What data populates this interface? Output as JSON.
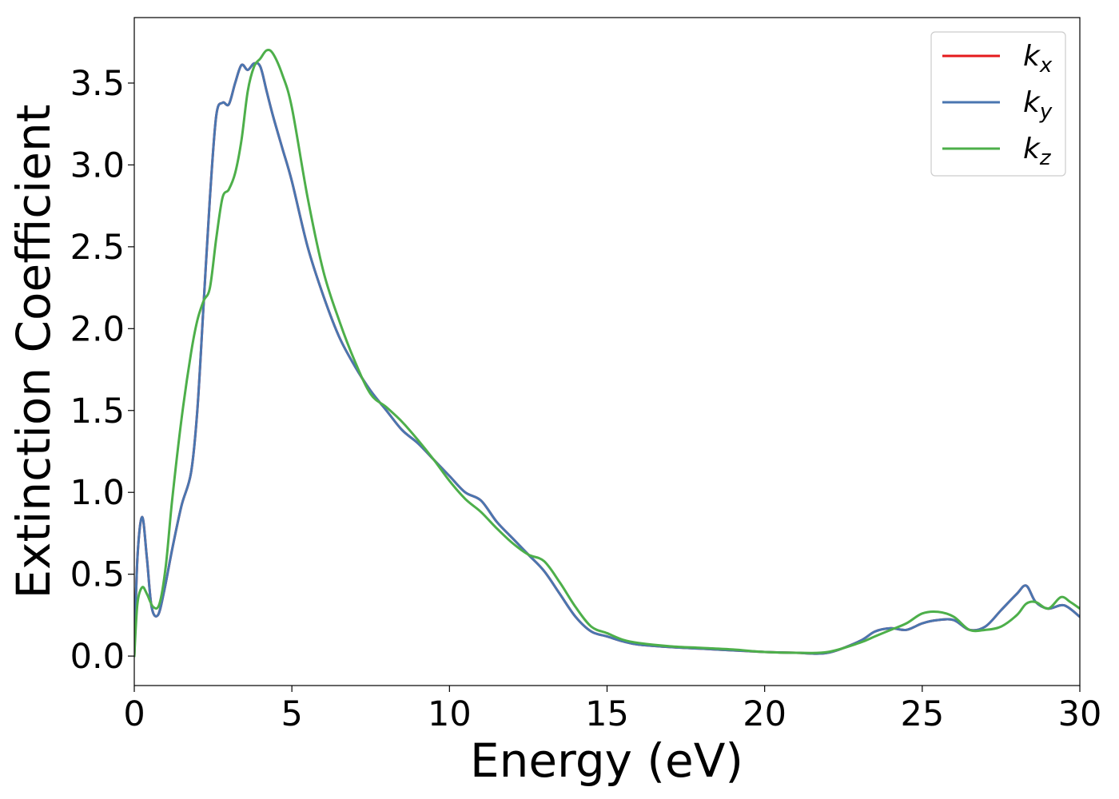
{
  "chart_data": {
    "type": "line",
    "title": "",
    "xlabel": "Energy (eV)",
    "ylabel": "Extinction Coefficient",
    "xlim": [
      0,
      30
    ],
    "ylim": [
      -0.18,
      3.9
    ],
    "xticks": [
      0,
      5,
      10,
      15,
      20,
      25,
      30
    ],
    "xtick_labels": [
      "0",
      "5",
      "10",
      "15",
      "20",
      "25",
      "30"
    ],
    "yticks": [
      0.0,
      0.5,
      1.0,
      1.5,
      2.0,
      2.5,
      3.0,
      3.5
    ],
    "ytick_labels": [
      "0.0",
      "0.5",
      "1.0",
      "1.5",
      "2.0",
      "2.5",
      "3.0",
      "3.5"
    ],
    "grid": false,
    "legend_position": "top-right",
    "series": [
      {
        "name": "k_x",
        "legend_base": "k",
        "legend_sub": "x",
        "color": "#e41a1c",
        "x": [
          0,
          0.1,
          0.25,
          0.4,
          0.55,
          0.75,
          0.95,
          1.2,
          1.5,
          1.8,
          2.0,
          2.2,
          2.4,
          2.6,
          2.8,
          3.0,
          3.2,
          3.4,
          3.6,
          3.8,
          4.0,
          4.2,
          4.4,
          4.7,
          5.0,
          5.5,
          6.0,
          6.5,
          7.0,
          7.5,
          8.0,
          8.5,
          9.0,
          9.5,
          10.0,
          10.5,
          11.0,
          11.5,
          12.0,
          12.5,
          13.0,
          13.5,
          14.0,
          14.5,
          15.0,
          15.5,
          16.0,
          17.0,
          18.0,
          19.0,
          20.0,
          21.0,
          22.0,
          23.0,
          23.5,
          24.0,
          24.5,
          25.0,
          25.5,
          26.0,
          26.5,
          27.0,
          27.5,
          28.0,
          28.3,
          28.6,
          29.0,
          29.5,
          30.0
        ],
        "values": [
          0.0,
          0.6,
          0.85,
          0.6,
          0.3,
          0.25,
          0.4,
          0.65,
          0.92,
          1.12,
          1.5,
          2.15,
          2.8,
          3.3,
          3.38,
          3.37,
          3.5,
          3.61,
          3.58,
          3.62,
          3.6,
          3.45,
          3.3,
          3.1,
          2.9,
          2.5,
          2.2,
          1.95,
          1.77,
          1.62,
          1.5,
          1.38,
          1.3,
          1.2,
          1.1,
          1.0,
          0.95,
          0.82,
          0.72,
          0.62,
          0.52,
          0.38,
          0.24,
          0.15,
          0.12,
          0.09,
          0.07,
          0.055,
          0.045,
          0.035,
          0.025,
          0.02,
          0.02,
          0.09,
          0.15,
          0.17,
          0.16,
          0.2,
          0.22,
          0.22,
          0.16,
          0.18,
          0.28,
          0.38,
          0.43,
          0.33,
          0.29,
          0.31,
          0.24
        ]
      },
      {
        "name": "k_y",
        "legend_base": "k",
        "legend_sub": "y",
        "color": "#4a76b0",
        "x": [
          0,
          0.1,
          0.25,
          0.4,
          0.55,
          0.75,
          0.95,
          1.2,
          1.5,
          1.8,
          2.0,
          2.2,
          2.4,
          2.6,
          2.8,
          3.0,
          3.2,
          3.4,
          3.6,
          3.8,
          4.0,
          4.2,
          4.4,
          4.7,
          5.0,
          5.5,
          6.0,
          6.5,
          7.0,
          7.5,
          8.0,
          8.5,
          9.0,
          9.5,
          10.0,
          10.5,
          11.0,
          11.5,
          12.0,
          12.5,
          13.0,
          13.5,
          14.0,
          14.5,
          15.0,
          15.5,
          16.0,
          17.0,
          18.0,
          19.0,
          20.0,
          21.0,
          22.0,
          23.0,
          23.5,
          24.0,
          24.5,
          25.0,
          25.5,
          26.0,
          26.5,
          27.0,
          27.5,
          28.0,
          28.3,
          28.6,
          29.0,
          29.5,
          30.0
        ],
        "values": [
          0.0,
          0.6,
          0.85,
          0.6,
          0.3,
          0.25,
          0.4,
          0.65,
          0.92,
          1.12,
          1.5,
          2.15,
          2.8,
          3.3,
          3.38,
          3.37,
          3.5,
          3.61,
          3.58,
          3.62,
          3.6,
          3.45,
          3.3,
          3.1,
          2.9,
          2.5,
          2.2,
          1.95,
          1.77,
          1.62,
          1.5,
          1.38,
          1.3,
          1.2,
          1.1,
          1.0,
          0.95,
          0.82,
          0.72,
          0.62,
          0.52,
          0.38,
          0.24,
          0.15,
          0.12,
          0.09,
          0.07,
          0.055,
          0.045,
          0.035,
          0.025,
          0.02,
          0.02,
          0.09,
          0.15,
          0.17,
          0.16,
          0.2,
          0.22,
          0.22,
          0.16,
          0.18,
          0.28,
          0.38,
          0.43,
          0.33,
          0.29,
          0.31,
          0.24
        ]
      },
      {
        "name": "k_z",
        "legend_base": "k",
        "legend_sub": "z",
        "color": "#4daf4a",
        "x": [
          0,
          0.1,
          0.25,
          0.4,
          0.6,
          0.8,
          1.0,
          1.2,
          1.5,
          1.8,
          2.0,
          2.2,
          2.4,
          2.6,
          2.8,
          3.0,
          3.2,
          3.4,
          3.6,
          3.8,
          4.0,
          4.2,
          4.4,
          4.7,
          5.0,
          5.5,
          6.0,
          6.5,
          7.0,
          7.5,
          8.0,
          8.5,
          9.0,
          9.5,
          10.0,
          10.5,
          11.0,
          11.5,
          12.0,
          12.5,
          13.0,
          13.5,
          14.0,
          14.5,
          15.0,
          15.5,
          16.0,
          17.0,
          18.0,
          19.0,
          20.0,
          21.0,
          22.0,
          23.0,
          23.5,
          24.0,
          24.5,
          25.0,
          25.5,
          26.0,
          26.5,
          27.0,
          27.5,
          28.0,
          28.3,
          28.6,
          29.0,
          29.4,
          29.7,
          30.0
        ],
        "values": [
          0.0,
          0.32,
          0.42,
          0.38,
          0.3,
          0.32,
          0.55,
          0.95,
          1.45,
          1.85,
          2.05,
          2.17,
          2.25,
          2.55,
          2.8,
          2.85,
          2.95,
          3.15,
          3.45,
          3.6,
          3.65,
          3.7,
          3.68,
          3.55,
          3.35,
          2.8,
          2.35,
          2.05,
          1.8,
          1.6,
          1.52,
          1.43,
          1.32,
          1.2,
          1.07,
          0.96,
          0.88,
          0.78,
          0.69,
          0.62,
          0.58,
          0.45,
          0.3,
          0.18,
          0.14,
          0.1,
          0.08,
          0.06,
          0.05,
          0.04,
          0.025,
          0.02,
          0.025,
          0.08,
          0.12,
          0.16,
          0.2,
          0.26,
          0.27,
          0.24,
          0.16,
          0.16,
          0.18,
          0.25,
          0.32,
          0.33,
          0.29,
          0.36,
          0.33,
          0.29
        ]
      }
    ]
  }
}
